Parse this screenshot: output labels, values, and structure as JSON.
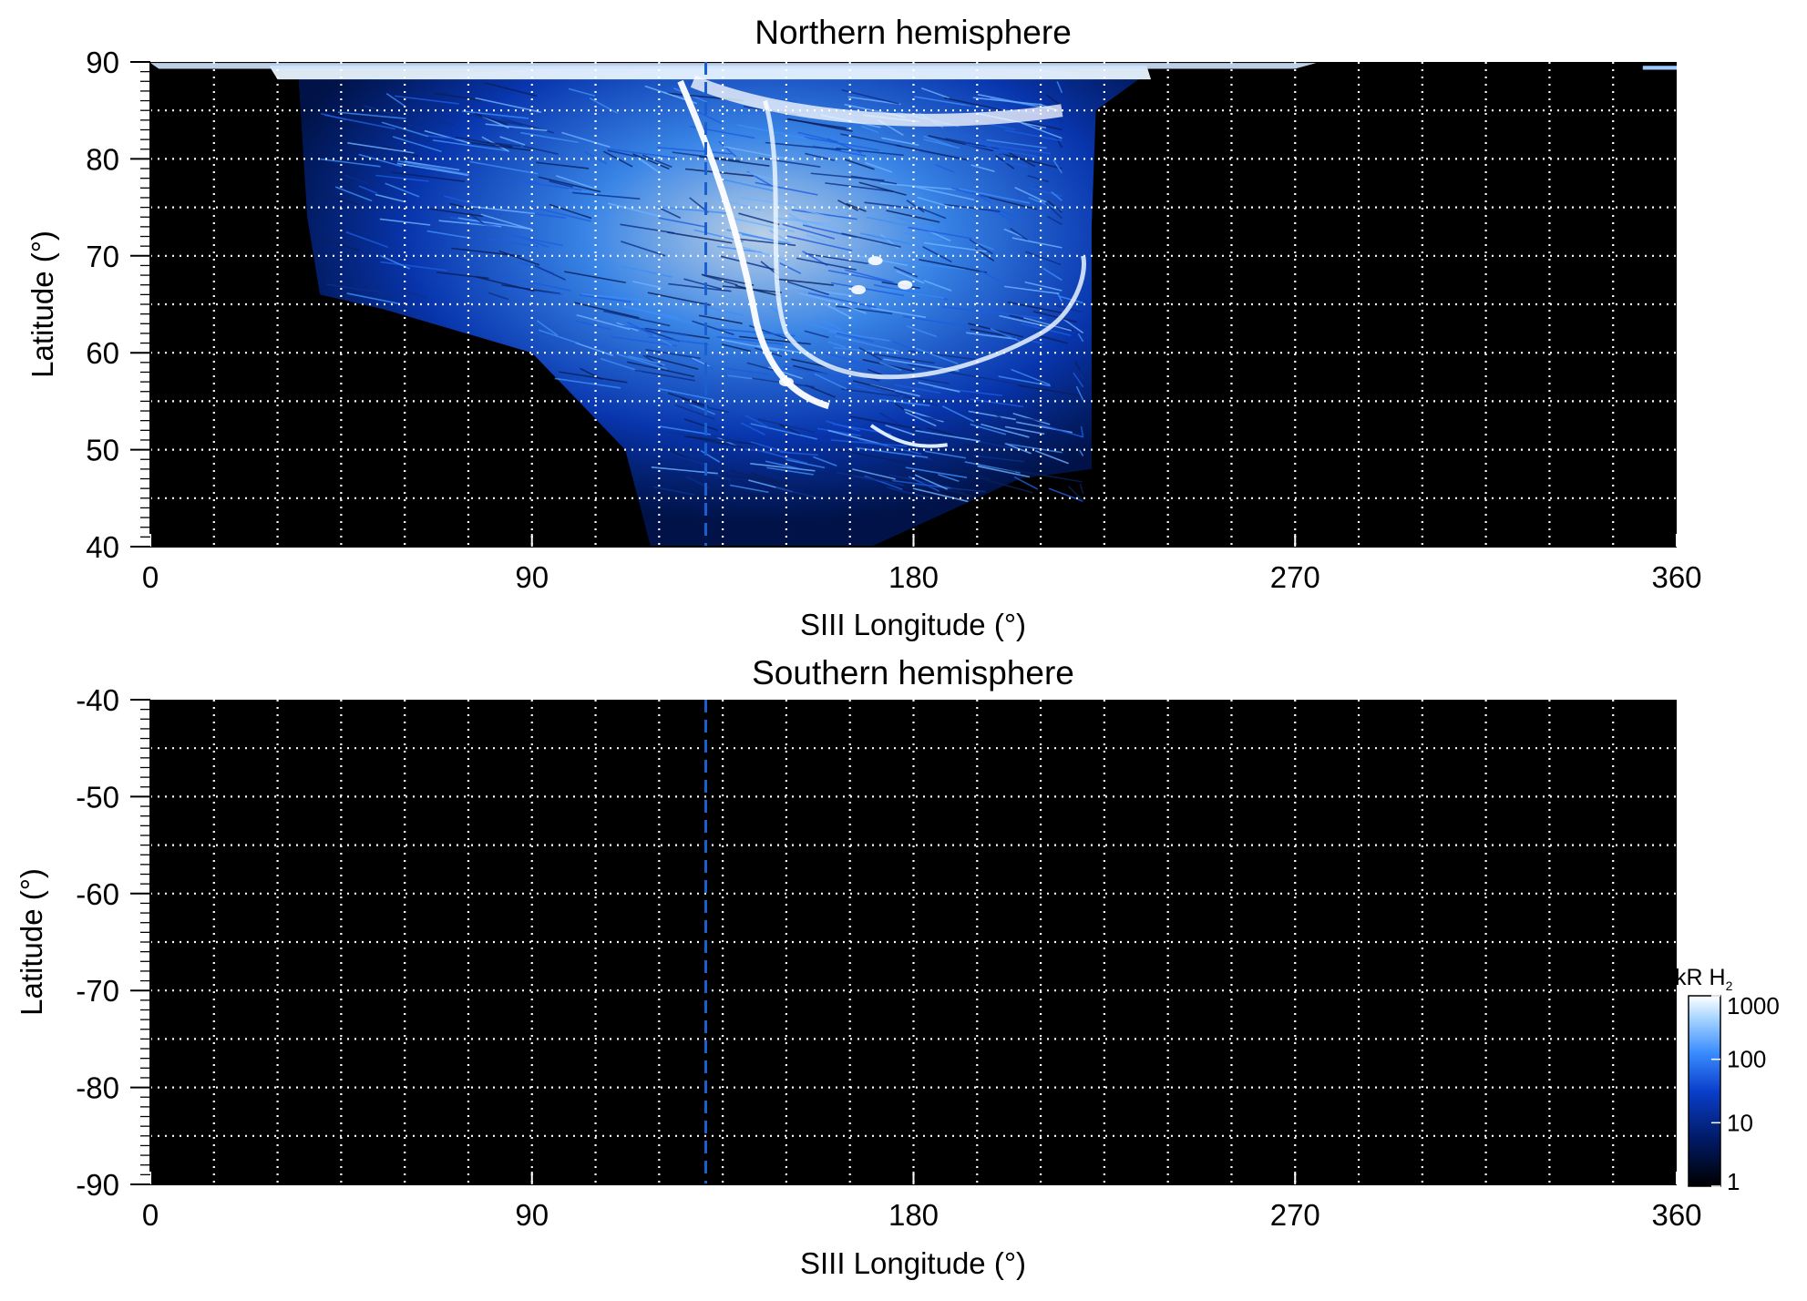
{
  "chart_data": [
    {
      "type": "heatmap",
      "title": "Northern hemisphere",
      "xlabel": "SIII Longitude (°)",
      "ylabel": "Latitude (°)",
      "xlim": [
        0,
        360
      ],
      "ylim": [
        40,
        90
      ],
      "x_ticks": [
        "0",
        "90",
        "180",
        "270",
        "360"
      ],
      "y_ticks": [
        "90",
        "80",
        "70",
        "60",
        "50",
        "40"
      ],
      "grid": true,
      "grid_x_step": 15,
      "grid_y_step": 5,
      "reference_line": {
        "longitude": 131,
        "style": "dashed",
        "color": "#1a5fd0"
      },
      "emission": {
        "description_free": true,
        "longitude_extent": [
          35,
          222
        ],
        "bright_oval_center_longitude": 170,
        "bright_oval_center_latitude": 68,
        "min_latitude": 40
      },
      "background_color": "#000000"
    },
    {
      "type": "heatmap",
      "title": "Southern hemisphere",
      "xlabel": "SIII Longitude (°)",
      "ylabel": "Latitude (°)",
      "xlim": [
        0,
        360
      ],
      "ylim": [
        -90,
        -40
      ],
      "x_ticks": [
        "0",
        "90",
        "180",
        "270",
        "360"
      ],
      "y_ticks": [
        "-40",
        "-50",
        "-60",
        "-70",
        "-80",
        "-90"
      ],
      "grid": true,
      "grid_x_step": 15,
      "grid_y_step": 5,
      "reference_line": {
        "longitude": 131,
        "style": "dashed",
        "color": "#1a5fd0"
      },
      "background_color": "#000000"
    }
  ],
  "colorbar": {
    "label": "kR H",
    "label_subscript": "2",
    "scale": "log",
    "range": [
      1,
      1000
    ],
    "ticks": [
      "1000",
      "100",
      "10",
      "1"
    ],
    "colors": [
      "#000000",
      "#001a66",
      "#0a3fcc",
      "#3a8cff",
      "#a6d4ff",
      "#ffffff"
    ]
  }
}
